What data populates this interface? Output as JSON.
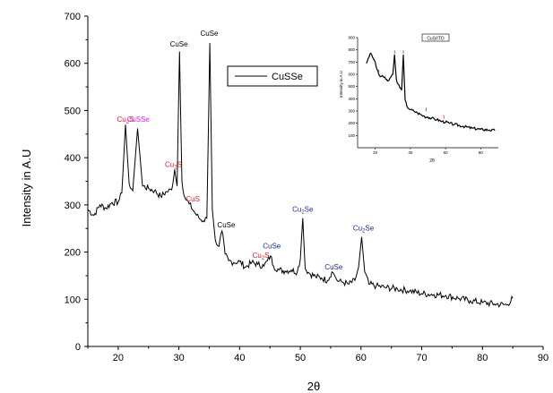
{
  "chart_data": {
    "type": "line",
    "xlabel": "2θ",
    "ylabel": "Intensity in A.U",
    "xlim": [
      15,
      90
    ],
    "ylim": [
      0,
      700
    ],
    "x_ticks": [
      "20",
      "30",
      "40",
      "50",
      "60",
      "70",
      "80",
      "90"
    ],
    "y_ticks": [
      "0",
      "100",
      "200",
      "300",
      "400",
      "500",
      "600",
      "700"
    ],
    "grid": false,
    "legend_position": "top-center",
    "series": [
      {
        "name": "CuSSe",
        "color": "#000000",
        "x": [
          15,
          16,
          17,
          18,
          19,
          20,
          20.6,
          21.2,
          21.8,
          22.4,
          23.2,
          24,
          25,
          26,
          27,
          28,
          28.8,
          29.3,
          29.7,
          30.1,
          30.5,
          31,
          31.7,
          32.5,
          33.3,
          34,
          34.6,
          35.1,
          35.5,
          36,
          36.6,
          37.1,
          37.6,
          38.2,
          39,
          40,
          41,
          42,
          43,
          44,
          44.6,
          45.1,
          45.6,
          46.5,
          47.5,
          48.5,
          49.5,
          50,
          50.4,
          50.8,
          51.5,
          52.5,
          53.5,
          54.5,
          55.2,
          55.6,
          56.2,
          57,
          58,
          59,
          59.6,
          60.1,
          60.6,
          61.3,
          62.5,
          64,
          66,
          68,
          70,
          72,
          74,
          76,
          78,
          80,
          82,
          84,
          85
        ],
        "values": [
          290,
          278,
          300,
          293,
          305,
          306,
          325,
          470,
          345,
          330,
          462,
          340,
          335,
          330,
          318,
          328,
          332,
          375,
          340,
          625,
          350,
          315,
          302,
          286,
          272,
          266,
          272,
          643,
          290,
          226,
          212,
          245,
          196,
          182,
          178,
          180,
          168,
          178,
          174,
          170,
          182,
          192,
          170,
          162,
          160,
          162,
          158,
          185,
          272,
          165,
          155,
          148,
          145,
          140,
          158,
          152,
          138,
          136,
          132,
          140,
          168,
          232,
          158,
          132,
          128,
          125,
          122,
          118,
          112,
          110,
          108,
          102,
          97,
          93,
          90,
          88,
          102
        ]
      }
    ],
    "peak_labels": [
      {
        "text": "Cu2S",
        "base": "Cu",
        "sub": "2",
        "rest": "S",
        "x": 21.2,
        "y": 470,
        "color": "#e0202a"
      },
      {
        "text": "CuSSe",
        "base": "CuSSe",
        "sub": "",
        "rest": "",
        "x": 23.3,
        "y": 470,
        "color": "#e020e0"
      },
      {
        "text": "Cu2S",
        "base": "Cu",
        "sub": "2",
        "rest": "S",
        "x": 29.1,
        "y": 375,
        "color": "#e0202a"
      },
      {
        "text": "CuSe",
        "base": "CuSe",
        "sub": "",
        "rest": "",
        "x": 30.0,
        "y": 630,
        "color": "#000000"
      },
      {
        "text": "CuS",
        "base": "CuS",
        "sub": "",
        "rest": "",
        "x": 32.3,
        "y": 302,
        "color": "#e0202a"
      },
      {
        "text": "CuSe",
        "base": "CuSe",
        "sub": "",
        "rest": "",
        "x": 35.0,
        "y": 653,
        "color": "#000000"
      },
      {
        "text": "CuSe",
        "base": "CuSe",
        "sub": "",
        "rest": "",
        "x": 37.8,
        "y": 247,
        "color": "#000000"
      },
      {
        "text": "Cu2S",
        "base": "Cu",
        "sub": "2",
        "rest": "S",
        "x": 43.5,
        "y": 182,
        "color": "#e0202a"
      },
      {
        "text": "CuSe",
        "base": "CuSe",
        "sub": "",
        "rest": "",
        "x": 45.3,
        "y": 202,
        "color": "#1a2a9a"
      },
      {
        "text": "Cu2Se",
        "base": "Cu",
        "sub": "2",
        "rest": "Se",
        "x": 50.4,
        "y": 280,
        "color": "#1a2a9a"
      },
      {
        "text": "CuSe",
        "base": "CuSe",
        "sub": "",
        "rest": "",
        "x": 55.5,
        "y": 157,
        "color": "#1a2a9a"
      },
      {
        "text": "Cu2Se",
        "base": "Cu",
        "sub": "2",
        "rest": "Se",
        "x": 60.4,
        "y": 240,
        "color": "#1a2a9a"
      }
    ],
    "inset": {
      "type": "line",
      "xlabel": "2θ",
      "ylabel": "Intensity in A.U",
      "legend_label": "CuS/ITO",
      "xlim": [
        10,
        90
      ],
      "ylim": [
        0,
        900
      ],
      "x_ticks": [
        "20",
        "40",
        "60",
        "80"
      ],
      "y_ticks": [
        "100",
        "200",
        "300",
        "400",
        "500",
        "600",
        "700",
        "800",
        "900"
      ],
      "x": [
        15,
        16,
        17,
        18,
        19,
        20,
        21,
        22,
        23,
        24,
        25,
        26,
        27,
        28,
        29,
        30,
        31,
        32,
        33,
        34,
        35,
        36,
        37,
        38,
        40,
        42,
        44,
        46,
        48,
        50,
        52,
        55,
        58,
        60,
        62,
        65,
        70,
        75,
        80,
        85,
        88
      ],
      "values": [
        690,
        730,
        765,
        760,
        725,
        700,
        640,
        600,
        580,
        590,
        575,
        560,
        545,
        555,
        580,
        600,
        760,
        560,
        520,
        490,
        470,
        760,
        390,
        340,
        310,
        300,
        285,
        270,
        255,
        250,
        240,
        230,
        215,
        210,
        200,
        190,
        175,
        160,
        150,
        145,
        140
      ],
      "markers": [
        {
          "x": 22,
          "y": 600,
          "color": "#e0202a"
        },
        {
          "x": 31,
          "y": 760,
          "color": "#e0202a"
        },
        {
          "x": 36,
          "y": 760,
          "color": "#e0202a"
        },
        {
          "x": 49,
          "y": 290,
          "color": "#e0202a"
        },
        {
          "x": 59,
          "y": 230,
          "color": "#e0202a"
        }
      ]
    }
  }
}
